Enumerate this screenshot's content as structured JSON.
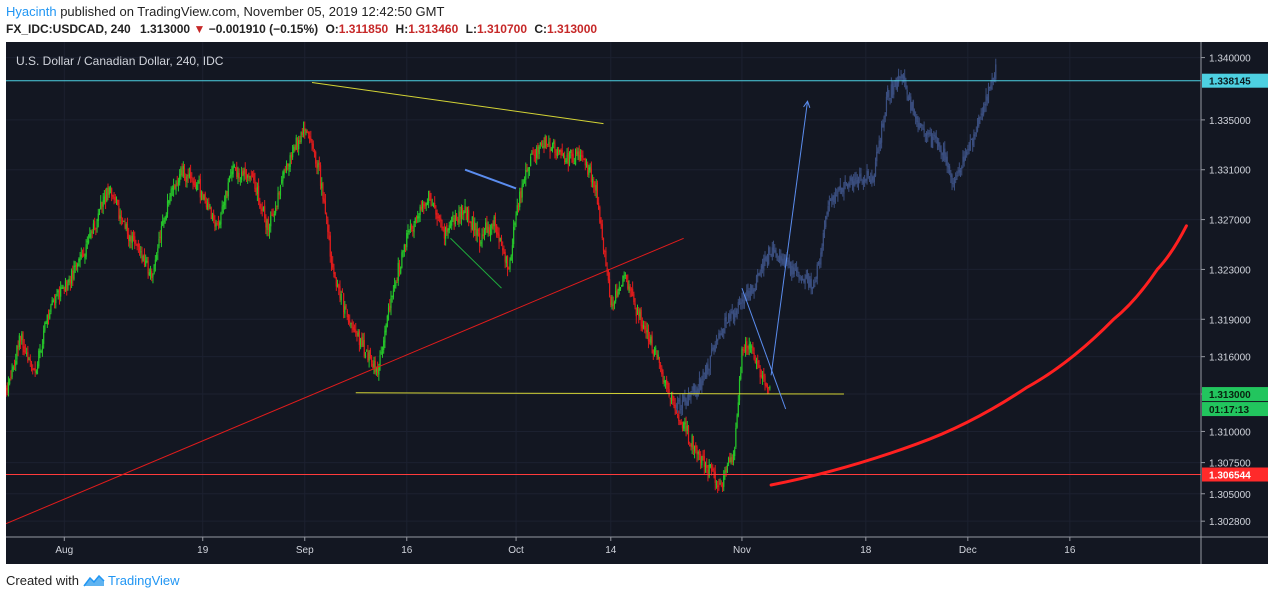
{
  "header": {
    "author": "Hyacinth",
    "published_text": "published on TradingView.com, November 05, 2019 12:42:50 GMT",
    "symbol": "FX_IDC:USDCAD, 240",
    "price": "1.313000",
    "change": "−0.001910 (−0.15%)",
    "open_label": "O:",
    "open_value": "1.311850",
    "high_label": "H:",
    "high_value": "1.313460",
    "low_label": "L:",
    "low_value": "1.310700",
    "close_label": "C:",
    "close_value": "1.313000"
  },
  "footer": {
    "created_with": "Created with",
    "brand": "TradingView"
  },
  "colors": {
    "background": "#131722",
    "up_candle": "#26c72a",
    "down_candle": "#e01c1c",
    "ghost_candle": "#3b4f80",
    "cyan_level": "#4dd0e1",
    "red_level": "#ff3b3b",
    "yellow_line": "#d4d435",
    "blue_line": "#5b8def",
    "green_line": "#1faa3c",
    "current_price_tag": "#22c55e"
  },
  "chart_data": {
    "type": "candlestick",
    "title": "U.S. Dollar / Canadian Dollar, 240, IDC",
    "ylim": [
      1.30153,
      1.34125
    ],
    "y_ticks": [
      "1.340000",
      "1.335000",
      "1.331000",
      "1.327000",
      "1.323000",
      "1.319000",
      "1.316000",
      "1.313000",
      "1.310000",
      "1.307500",
      "1.305000",
      "1.302800"
    ],
    "x_ticks": [
      "Aug",
      "19",
      "Sep",
      "16",
      "Oct",
      "14",
      "Nov",
      "18",
      "Dec",
      "16"
    ],
    "x_tick_dates": [
      "2019-07-31",
      "2019-08-19",
      "2019-09-02",
      "2019-09-16",
      "2019-10-01",
      "2019-10-14",
      "2019-11-01",
      "2019-11-18",
      "2019-12-02",
      "2019-12-16"
    ],
    "horizontal_levels": [
      {
        "value": 1.338145,
        "label": "1.338145",
        "color": "#4dd0e1"
      },
      {
        "value": 1.306544,
        "label": "1.306544",
        "color": "#ff3b3b"
      }
    ],
    "current_price": {
      "value": 1.313,
      "label": "1.313000",
      "countdown": "01:17:13"
    },
    "price_path": [
      {
        "date": "2019-07-23",
        "price": 1.3135
      },
      {
        "date": "2019-07-25",
        "price": 1.3175
      },
      {
        "date": "2019-07-27",
        "price": 1.3148
      },
      {
        "date": "2019-07-29",
        "price": 1.32
      },
      {
        "date": "2019-07-31",
        "price": 1.3215
      },
      {
        "date": "2019-08-03",
        "price": 1.3245
      },
      {
        "date": "2019-08-06",
        "price": 1.3295
      },
      {
        "date": "2019-08-08",
        "price": 1.3268
      },
      {
        "date": "2019-08-12",
        "price": 1.3225
      },
      {
        "date": "2019-08-14",
        "price": 1.328
      },
      {
        "date": "2019-08-16",
        "price": 1.3312
      },
      {
        "date": "2019-08-19",
        "price": 1.329
      },
      {
        "date": "2019-08-21",
        "price": 1.3265
      },
      {
        "date": "2019-08-23",
        "price": 1.331
      },
      {
        "date": "2019-08-26",
        "price": 1.33
      },
      {
        "date": "2019-08-28",
        "price": 1.326
      },
      {
        "date": "2019-08-30",
        "price": 1.3305
      },
      {
        "date": "2019-09-02",
        "price": 1.3345
      },
      {
        "date": "2019-09-04",
        "price": 1.331
      },
      {
        "date": "2019-09-06",
        "price": 1.3225
      },
      {
        "date": "2019-09-08",
        "price": 1.319
      },
      {
        "date": "2019-09-10",
        "price": 1.3168
      },
      {
        "date": "2019-09-12",
        "price": 1.315
      },
      {
        "date": "2019-09-14",
        "price": 1.321
      },
      {
        "date": "2019-09-16",
        "price": 1.3255
      },
      {
        "date": "2019-09-19",
        "price": 1.329
      },
      {
        "date": "2019-09-21",
        "price": 1.326
      },
      {
        "date": "2019-09-24",
        "price": 1.3278
      },
      {
        "date": "2019-09-26",
        "price": 1.3255
      },
      {
        "date": "2019-09-28",
        "price": 1.3268
      },
      {
        "date": "2019-09-30",
        "price": 1.3228
      },
      {
        "date": "2019-10-01",
        "price": 1.3275
      },
      {
        "date": "2019-10-03",
        "price": 1.332
      },
      {
        "date": "2019-10-05",
        "price": 1.3332
      },
      {
        "date": "2019-10-08",
        "price": 1.3318
      },
      {
        "date": "2019-10-10",
        "price": 1.3322
      },
      {
        "date": "2019-10-12",
        "price": 1.3295
      },
      {
        "date": "2019-10-13",
        "price": 1.3248
      },
      {
        "date": "2019-10-14",
        "price": 1.32
      },
      {
        "date": "2019-10-16",
        "price": 1.3225
      },
      {
        "date": "2019-10-18",
        "price": 1.319
      },
      {
        "date": "2019-10-20",
        "price": 1.3165
      },
      {
        "date": "2019-10-22",
        "price": 1.313
      },
      {
        "date": "2019-10-24",
        "price": 1.3105
      },
      {
        "date": "2019-10-26",
        "price": 1.308
      },
      {
        "date": "2019-10-28",
        "price": 1.3065
      },
      {
        "date": "2019-10-29",
        "price": 1.3055
      },
      {
        "date": "2019-10-31",
        "price": 1.3085
      },
      {
        "date": "2019-11-01",
        "price": 1.3165
      },
      {
        "date": "2019-11-02",
        "price": 1.317
      },
      {
        "date": "2019-11-04",
        "price": 1.314
      },
      {
        "date": "2019-11-05",
        "price": 1.313
      }
    ],
    "projection_path": [
      {
        "date": "2019-10-23",
        "price": 1.312
      },
      {
        "date": "2019-10-26",
        "price": 1.3135
      },
      {
        "date": "2019-10-30",
        "price": 1.319
      },
      {
        "date": "2019-11-02",
        "price": 1.321
      },
      {
        "date": "2019-11-05",
        "price": 1.3245
      },
      {
        "date": "2019-11-08",
        "price": 1.323
      },
      {
        "date": "2019-11-11",
        "price": 1.3215
      },
      {
        "date": "2019-11-13",
        "price": 1.329
      },
      {
        "date": "2019-11-16",
        "price": 1.33
      },
      {
        "date": "2019-11-19",
        "price": 1.3305
      },
      {
        "date": "2019-11-21",
        "price": 1.337
      },
      {
        "date": "2019-11-23",
        "price": 1.3385
      },
      {
        "date": "2019-11-25",
        "price": 1.3345
      },
      {
        "date": "2019-11-28",
        "price": 1.333
      },
      {
        "date": "2019-11-30",
        "price": 1.33
      },
      {
        "date": "2019-12-02",
        "price": 1.3325
      },
      {
        "date": "2019-12-04",
        "price": 1.3355
      },
      {
        "date": "2019-12-06",
        "price": 1.3395
      }
    ],
    "drawings": [
      {
        "kind": "trendline",
        "color": "#d4d435",
        "from": {
          "date": "2019-09-03",
          "price": 1.338
        },
        "to": {
          "date": "2019-10-13",
          "price": 1.3347
        }
      },
      {
        "kind": "trendline",
        "color": "#d4d435",
        "from": {
          "date": "2019-09-09",
          "price": 1.3131
        },
        "to": {
          "date": "2019-11-15",
          "price": 1.313
        }
      },
      {
        "kind": "trendline",
        "color": "#5b8def",
        "from": {
          "date": "2019-09-24",
          "price": 1.331
        },
        "to": {
          "date": "2019-10-01",
          "price": 1.3295
        }
      },
      {
        "kind": "trendline",
        "color": "#1faa3c",
        "from": {
          "date": "2019-09-22",
          "price": 1.3255
        },
        "to": {
          "date": "2019-09-29",
          "price": 1.3215
        }
      },
      {
        "kind": "trendline",
        "color": "#e01c1c",
        "from": {
          "date": "2019-07-23",
          "price": 1.3026
        },
        "to": {
          "date": "2019-10-24",
          "price": 1.3255
        }
      },
      {
        "kind": "trendline",
        "color": "#5b8def",
        "from": {
          "date": "2019-11-01",
          "price": 1.3215
        },
        "to": {
          "date": "2019-11-07",
          "price": 1.3118
        }
      },
      {
        "kind": "arrow",
        "color": "#5b8def",
        "from": {
          "date": "2019-11-05",
          "price": 1.3145
        },
        "to": {
          "date": "2019-11-10",
          "price": 1.3365
        }
      },
      {
        "kind": "curve",
        "color": "#ff2020",
        "points": [
          {
            "date": "2019-11-05",
            "price": 1.3057
          },
          {
            "date": "2019-11-25",
            "price": 1.309
          },
          {
            "date": "2019-12-10",
            "price": 1.3135
          },
          {
            "date": "2019-12-22",
            "price": 1.319
          },
          {
            "date": "2019-12-28",
            "price": 1.323
          },
          {
            "date": "2020-01-01",
            "price": 1.3265
          }
        ]
      }
    ]
  }
}
